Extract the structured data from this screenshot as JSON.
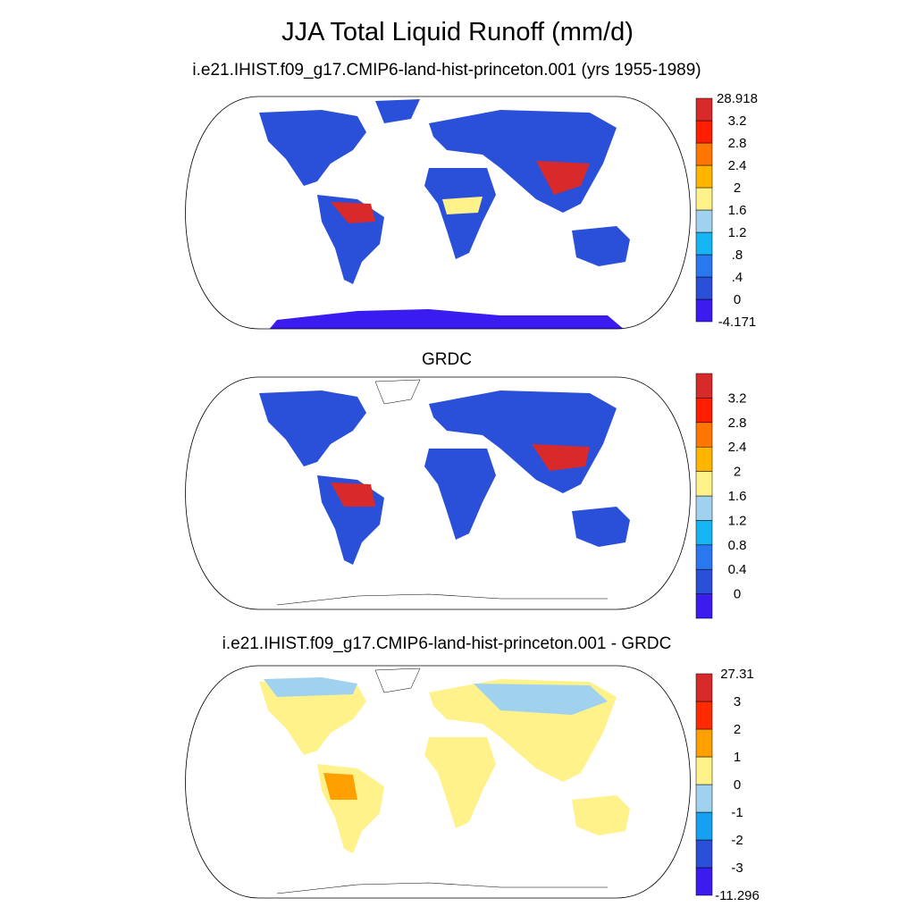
{
  "figure": {
    "title": "JJA Total Liquid Runoff (mm/d)"
  },
  "panels": [
    {
      "title": "i.e21.IHIST.f09_g17.CMIP6-land-hist-princeton.001 (yrs 1955-1989)",
      "colorbar": {
        "colors": [
          "#3a1cf0",
          "#2a4fd8",
          "#2a78f0",
          "#16b4f0",
          "#a0d2f0",
          "#fff28a",
          "#ffb400",
          "#ff7700",
          "#ff1e00",
          "#d82a2a"
        ],
        "labels": [
          "-4.171",
          "0",
          ".4",
          ".8",
          "1.2",
          "1.6",
          "2",
          "2.4",
          "2.8",
          "3.2",
          "28.918"
        ]
      }
    },
    {
      "title": "GRDC",
      "colorbar": {
        "colors": [
          "#3a1cf0",
          "#2a4fd8",
          "#2a78f0",
          "#16b4f0",
          "#a0d2f0",
          "#fff28a",
          "#ffb400",
          "#ff7700",
          "#ff1e00",
          "#d82a2a"
        ],
        "labels": [
          "",
          "0",
          "0.4",
          "0.8",
          "1.2",
          "1.6",
          "2",
          "2.4",
          "2.8",
          "3.2",
          ""
        ]
      }
    },
    {
      "title": "i.e21.IHIST.f09_g17.CMIP6-land-hist-princeton.001 - GRDC",
      "colorbar": {
        "colors": [
          "#3a1cf0",
          "#2a4fd8",
          "#16a0f0",
          "#a0d2f0",
          "#fff28a",
          "#ffa000",
          "#ff2a00",
          "#d82a2a"
        ],
        "labels": [
          "-11.296",
          "-3",
          "-2",
          "-1",
          "0",
          "1",
          "2",
          "3",
          "27.31"
        ]
      }
    }
  ]
}
